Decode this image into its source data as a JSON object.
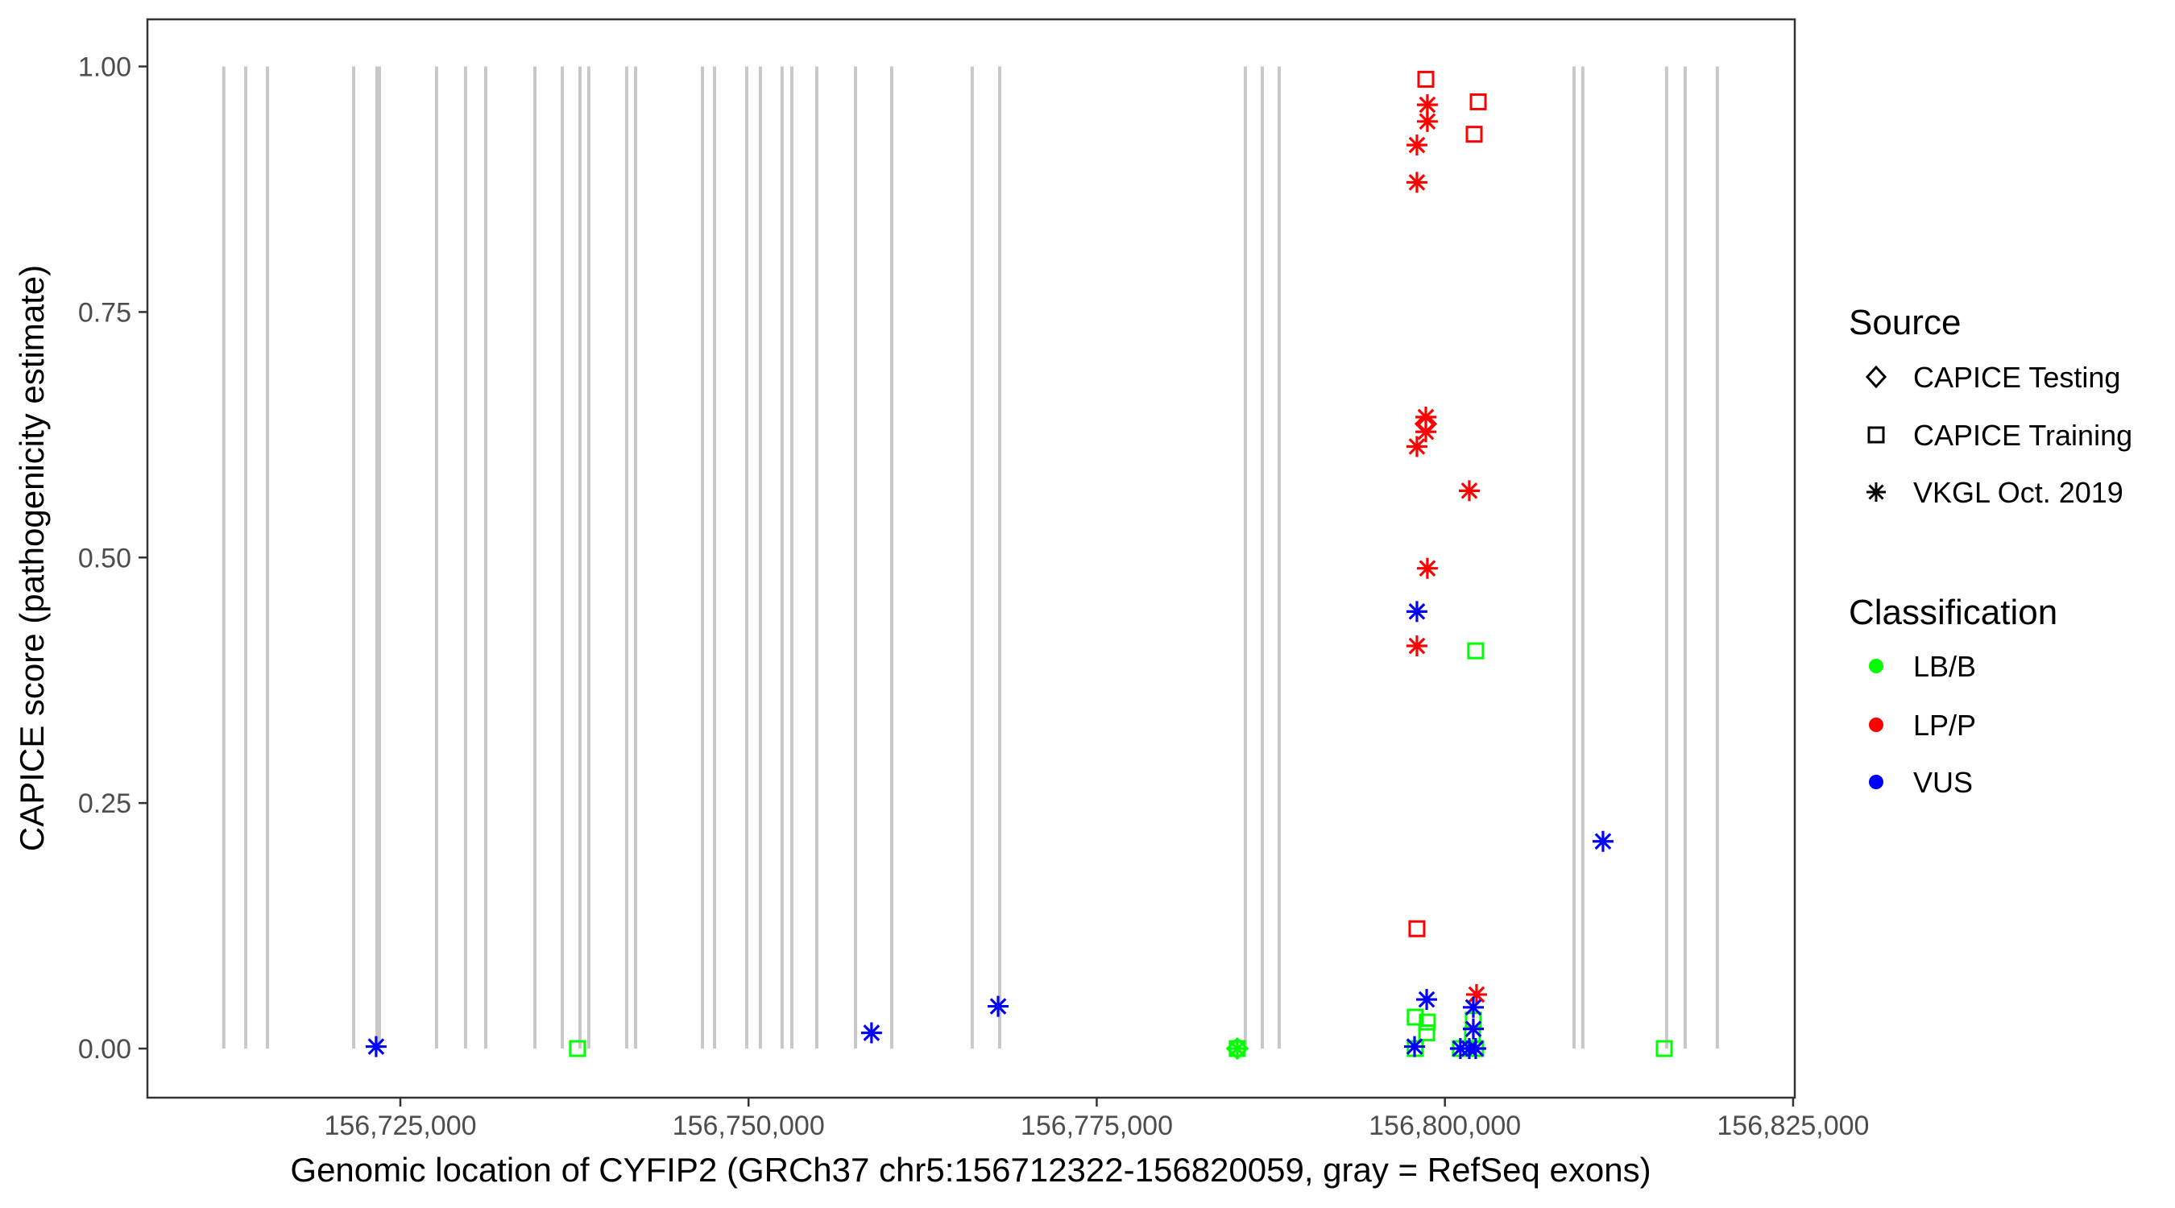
{
  "chart_data": {
    "type": "scatter",
    "xlabel": "Genomic location of CYFIP2 (GRCh37 chr5:156712322-156820059, gray = RefSeq exons)",
    "ylabel": "CAPICE score (pathogenicity estimate)",
    "xlim": [
      156706840,
      156825120
    ],
    "ylim": [
      -0.05,
      1.048
    ],
    "x_ticks": [
      156725000,
      156750000,
      156775000,
      156800000,
      156825000
    ],
    "x_tick_labels": [
      "156,725,000",
      "156,750,000",
      "156,775,000",
      "156,800,000",
      "156,825,000"
    ],
    "y_ticks": [
      0,
      0.25,
      0.5,
      0.75,
      1.0
    ],
    "y_tick_labels": [
      "0.00",
      "0.25",
      "0.50",
      "0.75",
      "1.00"
    ],
    "grid": false,
    "legend_position": "right",
    "exon_color": "#c8c8c8",
    "exons": [
      156712322,
      156713900,
      156715460,
      156721650,
      156723320,
      156723500,
      156727600,
      156729680,
      156731130,
      156734660,
      156736630,
      156737900,
      156738530,
      156741250,
      156741890,
      156746690,
      156747560,
      156749870,
      156750850,
      156752410,
      156753110,
      156754900,
      156757680,
      156760280,
      156766060,
      156768030,
      156785670,
      156786890,
      156788100,
      156809270,
      156809900,
      156815920,
      156817250,
      156819560
    ],
    "legends": {
      "source": {
        "title": "Source",
        "items": [
          {
            "label": "CAPICE Testing",
            "shape": "diamond"
          },
          {
            "label": "CAPICE Training",
            "shape": "square"
          },
          {
            "label": "VKGL Oct. 2019",
            "shape": "asterisk"
          }
        ]
      },
      "classification": {
        "title": "Classification",
        "items": [
          {
            "label": "LB/B",
            "color": "#00ff00"
          },
          {
            "label": "LP/P",
            "color": "#ff0000"
          },
          {
            "label": "VUS",
            "color": "#0000ff"
          }
        ]
      }
    },
    "points": [
      {
        "x": 156737720,
        "y": 0.0,
        "class": "LB/B",
        "source": "CAPICE Training"
      },
      {
        "x": 156785090,
        "y": 0.0,
        "class": "LB/B",
        "source": "CAPICE Training"
      },
      {
        "x": 156785090,
        "y": 0.0,
        "class": "LB/B",
        "source": "CAPICE Testing"
      },
      {
        "x": 156785090,
        "y": 0.0,
        "class": "LB/B",
        "source": "VKGL Oct. 2019"
      },
      {
        "x": 156797870,
        "y": 0.032,
        "class": "LB/B",
        "source": "CAPICE Training"
      },
      {
        "x": 156798740,
        "y": 0.027,
        "class": "LB/B",
        "source": "CAPICE Training"
      },
      {
        "x": 156798690,
        "y": 0.016,
        "class": "LB/B",
        "source": "CAPICE Training"
      },
      {
        "x": 156802040,
        "y": 0.029,
        "class": "LB/B",
        "source": "CAPICE Training"
      },
      {
        "x": 156801980,
        "y": 0.014,
        "class": "LB/B",
        "source": "CAPICE Training"
      },
      {
        "x": 156797870,
        "y": 0.0,
        "class": "LB/B",
        "source": "CAPICE Training"
      },
      {
        "x": 156801110,
        "y": 0.0,
        "class": "LB/B",
        "source": "CAPICE Training"
      },
      {
        "x": 156802210,
        "y": 0.0,
        "class": "LB/B",
        "source": "CAPICE Training"
      },
      {
        "x": 156802210,
        "y": 0.405,
        "class": "LB/B",
        "source": "CAPICE Training"
      },
      {
        "x": 156815750,
        "y": 0.0,
        "class": "LB/B",
        "source": "CAPICE Training"
      },
      {
        "x": 156798630,
        "y": 0.987,
        "class": "LP/P",
        "source": "CAPICE Training"
      },
      {
        "x": 156802390,
        "y": 0.964,
        "class": "LP/P",
        "source": "CAPICE Training"
      },
      {
        "x": 156802100,
        "y": 0.931,
        "class": "LP/P",
        "source": "CAPICE Training"
      },
      {
        "x": 156797990,
        "y": 0.122,
        "class": "LP/P",
        "source": "CAPICE Training"
      },
      {
        "x": 156798630,
        "y": 0.636,
        "class": "LP/P",
        "source": "CAPICE Testing"
      },
      {
        "x": 156798740,
        "y": 0.961,
        "class": "LP/P",
        "source": "VKGL Oct. 2019"
      },
      {
        "x": 156798740,
        "y": 0.944,
        "class": "LP/P",
        "source": "VKGL Oct. 2019"
      },
      {
        "x": 156797990,
        "y": 0.92,
        "class": "LP/P",
        "source": "VKGL Oct. 2019"
      },
      {
        "x": 156797990,
        "y": 0.882,
        "class": "LP/P",
        "source": "VKGL Oct. 2019"
      },
      {
        "x": 156798630,
        "y": 0.643,
        "class": "LP/P",
        "source": "VKGL Oct. 2019"
      },
      {
        "x": 156798630,
        "y": 0.628,
        "class": "LP/P",
        "source": "VKGL Oct. 2019"
      },
      {
        "x": 156797990,
        "y": 0.613,
        "class": "LP/P",
        "source": "VKGL Oct. 2019"
      },
      {
        "x": 156801750,
        "y": 0.568,
        "class": "LP/P",
        "source": "VKGL Oct. 2019"
      },
      {
        "x": 156798740,
        "y": 0.489,
        "class": "LP/P",
        "source": "VKGL Oct. 2019"
      },
      {
        "x": 156797990,
        "y": 0.41,
        "class": "LP/P",
        "source": "VKGL Oct. 2019"
      },
      {
        "x": 156802270,
        "y": 0.055,
        "class": "LP/P",
        "source": "VKGL Oct. 2019"
      },
      {
        "x": 156723260,
        "y": 0.002,
        "class": "VUS",
        "source": "VKGL Oct. 2019"
      },
      {
        "x": 156758830,
        "y": 0.016,
        "class": "VUS",
        "source": "VKGL Oct. 2019"
      },
      {
        "x": 156767920,
        "y": 0.043,
        "class": "VUS",
        "source": "VKGL Oct. 2019"
      },
      {
        "x": 156811350,
        "y": 0.211,
        "class": "VUS",
        "source": "VKGL Oct. 2019"
      },
      {
        "x": 156797990,
        "y": 0.445,
        "class": "VUS",
        "source": "VKGL Oct. 2019"
      },
      {
        "x": 156798690,
        "y": 0.05,
        "class": "VUS",
        "source": "VKGL Oct. 2019"
      },
      {
        "x": 156802040,
        "y": 0.042,
        "class": "VUS",
        "source": "VKGL Oct. 2019"
      },
      {
        "x": 156802040,
        "y": 0.02,
        "class": "VUS",
        "source": "VKGL Oct. 2019"
      },
      {
        "x": 156797820,
        "y": 0.002,
        "class": "VUS",
        "source": "VKGL Oct. 2019"
      },
      {
        "x": 156801110,
        "y": 0.0,
        "class": "VUS",
        "source": "VKGL Oct. 2019"
      },
      {
        "x": 156801750,
        "y": 0.0,
        "class": "VUS",
        "source": "VKGL Oct. 2019"
      },
      {
        "x": 156802210,
        "y": 0.0,
        "class": "VUS",
        "source": "VKGL Oct. 2019"
      }
    ]
  }
}
